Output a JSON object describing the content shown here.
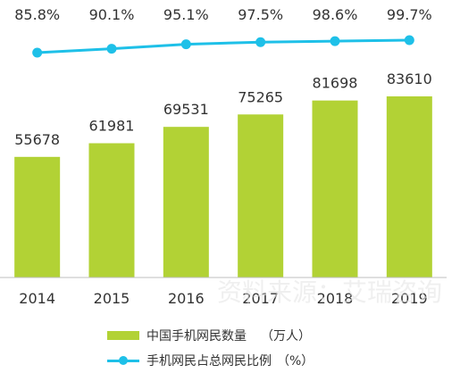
{
  "chart_data": {
    "type": "bar+line",
    "categories": [
      "2014",
      "2015",
      "2016",
      "2017",
      "2018",
      "2019"
    ],
    "series": [
      {
        "name": "中国手机网民数量",
        "unit": "（万人）",
        "type": "bar",
        "values": [
          55678,
          61981,
          69531,
          75265,
          81698,
          83610
        ],
        "value_labels": [
          "55678",
          "61981",
          "69531",
          "75265",
          "81698",
          "83610"
        ]
      },
      {
        "name": "手机网民占总网民比例",
        "unit": "（%）",
        "type": "line",
        "values": [
          85.8,
          90.1,
          95.1,
          97.5,
          98.6,
          99.7
        ],
        "value_labels": [
          "85.8%",
          "90.1%",
          "95.1%",
          "97.5%",
          "98.6%",
          "99.7%"
        ]
      }
    ],
    "bar_ylim": [
      0,
      120000
    ],
    "line_ylim": [
      60,
      110
    ],
    "grid": false,
    "legend_position": "bottom",
    "colors": {
      "bar": "#b2d235",
      "line": "#1ec0e8",
      "text": "#333333",
      "axis": "#bfbfbf"
    }
  },
  "watermark": "资料来源：艾瑞咨询"
}
